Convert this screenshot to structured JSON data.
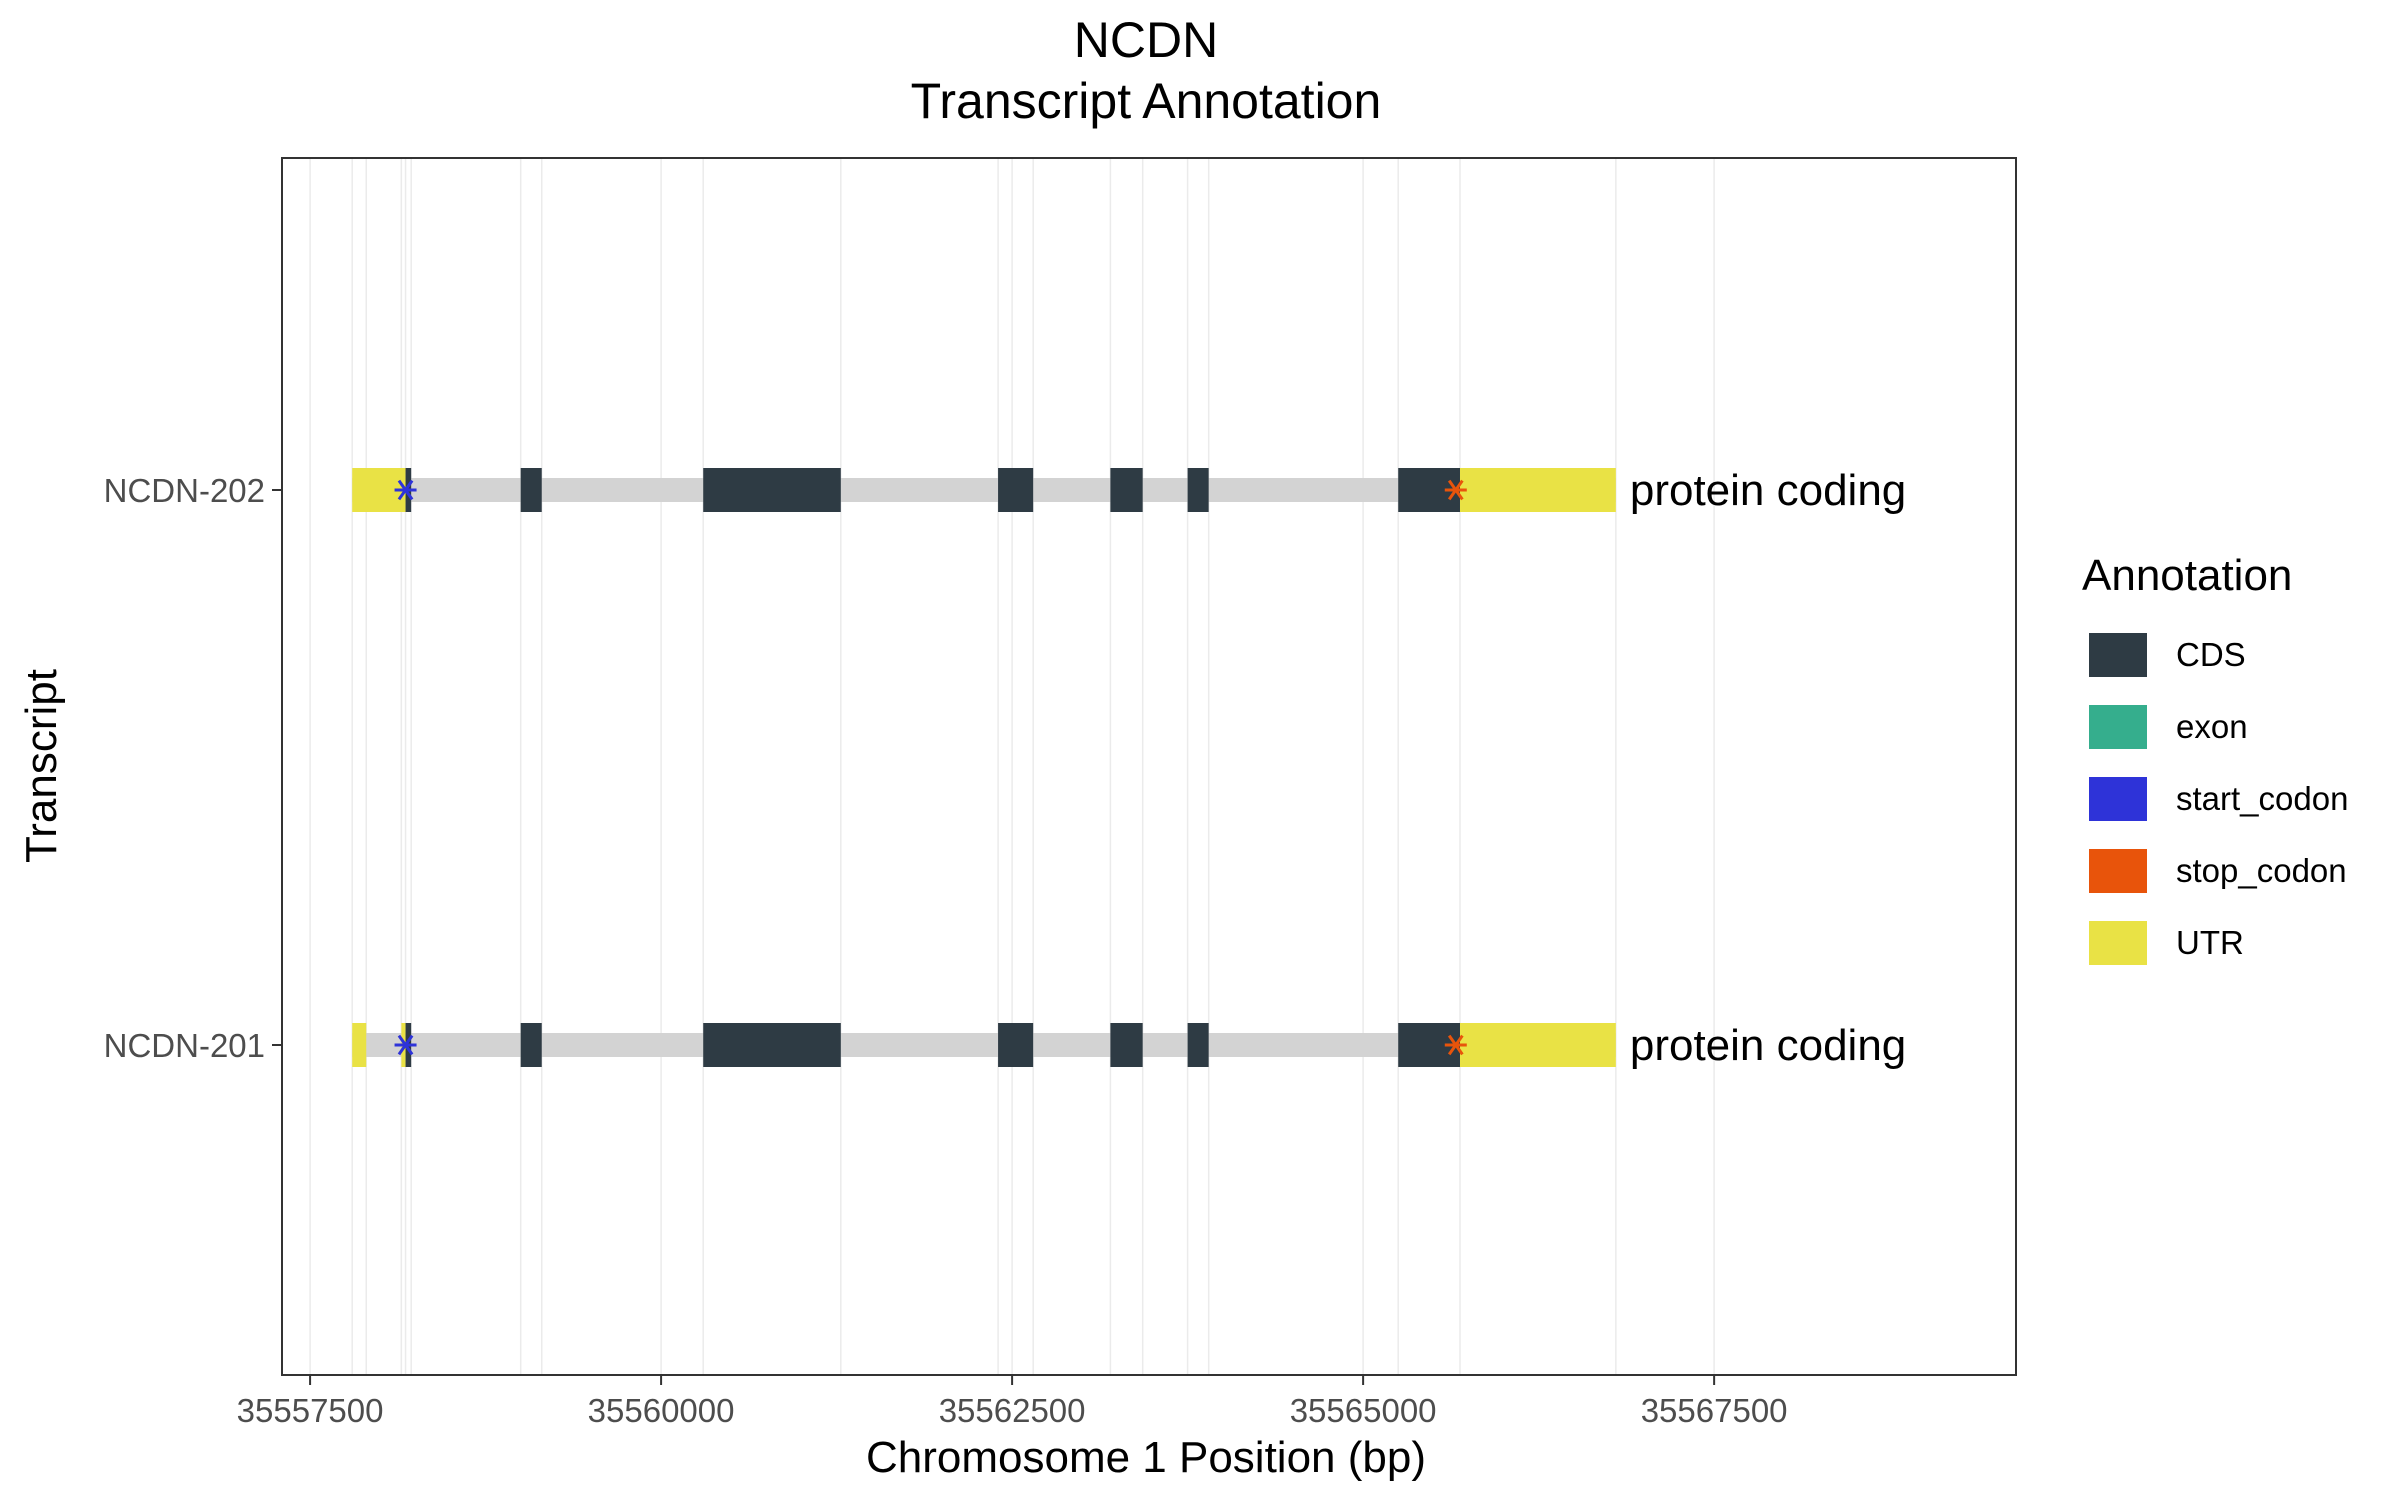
{
  "chart_data": {
    "type": "gene_transcript_track",
    "title": "NCDN",
    "subtitle": "Transcript Annotation",
    "xlabel": "Chromosome 1 Position (bp)",
    "ylabel": "Transcript",
    "xlim": [
      35557300,
      35569650
    ],
    "x_ticks": [
      35557500,
      35560000,
      35562500,
      35565000,
      35567500
    ],
    "x_tick_labels": [
      "35557500",
      "35560000",
      "35562500",
      "35565000",
      "35567500"
    ],
    "grid": true,
    "legend": {
      "title": "Annotation",
      "position": "right",
      "items": [
        {
          "label": "CDS",
          "color": "#2e3b44"
        },
        {
          "label": "exon",
          "color": "#35ae8d"
        },
        {
          "label": "start_codon",
          "color": "#2e33d8"
        },
        {
          "label": "stop_codon",
          "color": "#e8540b"
        },
        {
          "label": "UTR",
          "color": "#e9e245"
        }
      ]
    },
    "intron_color": "#d3d3d3",
    "transcripts": [
      {
        "name": "NCDN-202",
        "biotype_label": "protein coding",
        "span": [
          35557800,
          35566800
        ],
        "features": [
          {
            "type": "UTR",
            "start": 35557800,
            "end": 35558180
          },
          {
            "type": "CDS",
            "start": 35558180,
            "end": 35558220
          },
          {
            "type": "CDS",
            "start": 35559000,
            "end": 35559150
          },
          {
            "type": "CDS",
            "start": 35560300,
            "end": 35561280
          },
          {
            "type": "CDS",
            "start": 35562400,
            "end": 35562650
          },
          {
            "type": "CDS",
            "start": 35563200,
            "end": 35563430
          },
          {
            "type": "CDS",
            "start": 35563750,
            "end": 35563900
          },
          {
            "type": "CDS",
            "start": 35565250,
            "end": 35565690
          },
          {
            "type": "UTR",
            "start": 35565690,
            "end": 35566800
          }
        ],
        "start_codon": 35558180,
        "stop_codon": 35565660
      },
      {
        "name": "NCDN-201",
        "biotype_label": "protein coding",
        "span": [
          35557800,
          35566800
        ],
        "features": [
          {
            "type": "UTR",
            "start": 35557800,
            "end": 35557900
          },
          {
            "type": "UTR",
            "start": 35558150,
            "end": 35558180
          },
          {
            "type": "CDS",
            "start": 35558180,
            "end": 35558220
          },
          {
            "type": "CDS",
            "start": 35559000,
            "end": 35559150
          },
          {
            "type": "CDS",
            "start": 35560300,
            "end": 35561280
          },
          {
            "type": "CDS",
            "start": 35562400,
            "end": 35562650
          },
          {
            "type": "CDS",
            "start": 35563200,
            "end": 35563430
          },
          {
            "type": "CDS",
            "start": 35563750,
            "end": 35563900
          },
          {
            "type": "CDS",
            "start": 35565250,
            "end": 35565690
          },
          {
            "type": "UTR",
            "start": 35565690,
            "end": 35566800
          }
        ],
        "start_codon": 35558180,
        "stop_codon": 35565660
      }
    ]
  }
}
